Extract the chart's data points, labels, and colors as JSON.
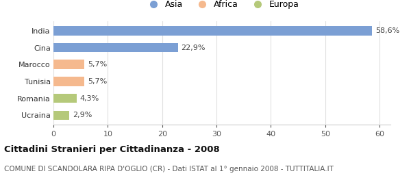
{
  "categories": [
    "Ucraina",
    "Romania",
    "Tunisia",
    "Marocco",
    "Cina",
    "India"
  ],
  "values": [
    2.9,
    4.3,
    5.7,
    5.7,
    22.9,
    58.6
  ],
  "labels": [
    "2,9%",
    "4,3%",
    "5,7%",
    "5,7%",
    "22,9%",
    "58,6%"
  ],
  "colors": [
    "#b5c97a",
    "#b5c97a",
    "#f5b98e",
    "#f5b98e",
    "#7b9fd4",
    "#7b9fd4"
  ],
  "legend": [
    {
      "label": "Asia",
      "color": "#7b9fd4"
    },
    {
      "label": "Africa",
      "color": "#f5b98e"
    },
    {
      "label": "Europa",
      "color": "#b5c97a"
    }
  ],
  "xlim": [
    0,
    62
  ],
  "xticks": [
    0,
    10,
    20,
    30,
    40,
    50,
    60
  ],
  "title": "Cittadini Stranieri per Cittadinanza - 2008",
  "subtitle": "COMUNE DI SCANDOLARA RIPA D'OGLIO (CR) - Dati ISTAT al 1° gennaio 2008 - TUTTITALIA.IT",
  "background_color": "#ffffff",
  "plot_bg_color": "#ffffff",
  "bar_height": 0.55,
  "label_fontsize": 8,
  "title_fontsize": 9.5,
  "subtitle_fontsize": 7.5,
  "tick_fontsize": 8
}
